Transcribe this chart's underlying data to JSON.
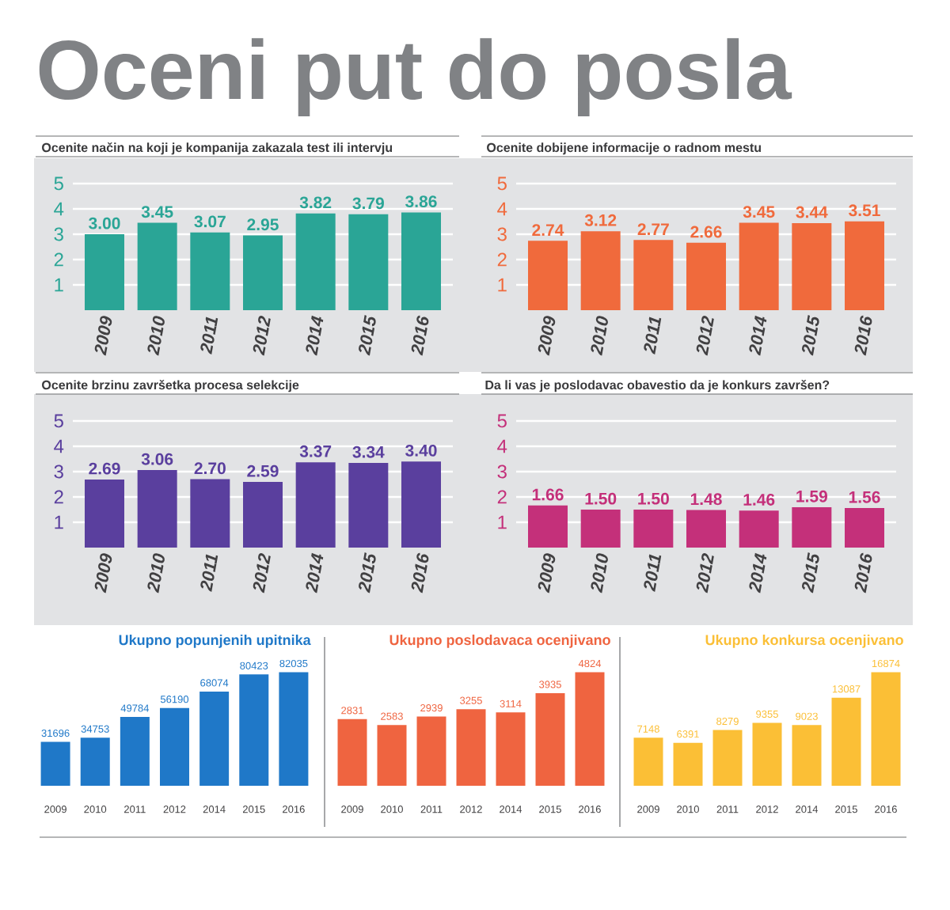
{
  "chart_data": [
    {
      "type": "other",
      "title": "Oceni put do posla"
    },
    {
      "type": "bar",
      "title": "Ocenite način na koji je kompanija zakazala test ili intervju",
      "categories": [
        "2009",
        "2010",
        "2011",
        "2012",
        "2014",
        "2015",
        "2016"
      ],
      "values": [
        3.0,
        3.45,
        3.07,
        2.95,
        3.82,
        3.79,
        3.86
      ],
      "value_labels": [
        "3.00",
        "3.45",
        "3.07",
        "2.95",
        "3.82",
        "3.79",
        "3.86"
      ],
      "color": "#2aa596",
      "ylim": [
        0,
        5
      ],
      "yticks": [
        1,
        2,
        3,
        4,
        5
      ],
      "grid": "y"
    },
    {
      "type": "bar",
      "title": "Ocenite dobijene informacije o radnom mestu",
      "categories": [
        "2009",
        "2010",
        "2011",
        "2012",
        "2014",
        "2015",
        "2016"
      ],
      "values": [
        2.74,
        3.12,
        2.77,
        2.66,
        3.45,
        3.44,
        3.51
      ],
      "value_labels": [
        "2.74",
        "3.12",
        "2.77",
        "2.66",
        "3.45",
        "3.44",
        "3.51"
      ],
      "color": "#f06a3c",
      "ylim": [
        0,
        5
      ],
      "yticks": [
        1,
        2,
        3,
        4,
        5
      ],
      "grid": "y"
    },
    {
      "type": "bar",
      "title": "Ocenite brzinu završetka procesa selekcije",
      "categories": [
        "2009",
        "2010",
        "2011",
        "2012",
        "2014",
        "2015",
        "2016"
      ],
      "values": [
        2.69,
        3.06,
        2.7,
        2.59,
        3.37,
        3.34,
        3.4
      ],
      "value_labels": [
        "2.69",
        "3.06",
        "2.70",
        "2.59",
        "3.37",
        "3.34",
        "3.40"
      ],
      "color": "#5a3f9e",
      "ylim": [
        0,
        5
      ],
      "yticks": [
        1,
        2,
        3,
        4,
        5
      ],
      "grid": "y"
    },
    {
      "type": "bar",
      "title": "Da li vas je poslodavac obavestio da je konkurs završen?",
      "categories": [
        "2009",
        "2010",
        "2011",
        "2012",
        "2014",
        "2015",
        "2016"
      ],
      "values": [
        1.66,
        1.5,
        1.5,
        1.48,
        1.46,
        1.59,
        1.56
      ],
      "value_labels": [
        "1.66",
        "1.50",
        "1.50",
        "1.48",
        "1.46",
        "1.59",
        "1.56"
      ],
      "color": "#c4307a",
      "ylim": [
        0,
        5
      ],
      "yticks": [
        1,
        2,
        3,
        4,
        5
      ],
      "grid": "y"
    },
    {
      "type": "bar",
      "title": "Ukupno popunjenih upitnika",
      "categories": [
        "2009",
        "2010",
        "2011",
        "2012",
        "2014",
        "2015",
        "2016"
      ],
      "values": [
        31696,
        34753,
        49784,
        56190,
        68074,
        80423,
        82035
      ],
      "color": "#1f78c8",
      "data_labels": true,
      "tick_labels": "x"
    },
    {
      "type": "bar",
      "title": "Ukupno poslodavaca ocenjivano",
      "categories": [
        "2009",
        "2010",
        "2011",
        "2012",
        "2014",
        "2015",
        "2016"
      ],
      "values": [
        2831,
        2583,
        2939,
        3255,
        3114,
        3935,
        4824
      ],
      "color": "#ef6440",
      "data_labels": true,
      "tick_labels": "x"
    },
    {
      "type": "bar",
      "title": "Ukupno konkursa ocenjivano",
      "categories": [
        "2009",
        "2010",
        "2011",
        "2012",
        "2014",
        "2015",
        "2016"
      ],
      "values": [
        7148,
        6391,
        8279,
        9355,
        9023,
        13087,
        16874
      ],
      "color": "#fbbf36",
      "data_labels": true,
      "tick_labels": "x"
    }
  ]
}
